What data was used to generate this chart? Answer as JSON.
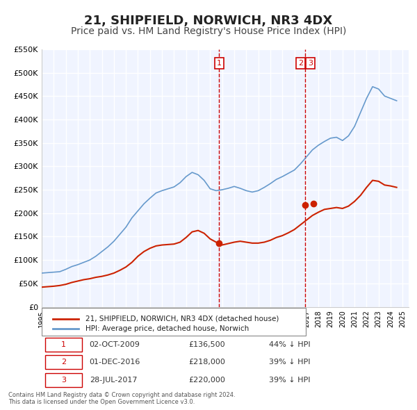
{
  "title": "21, SHIPFIELD, NORWICH, NR3 4DX",
  "subtitle": "Price paid vs. HM Land Registry's House Price Index (HPI)",
  "title_fontsize": 13,
  "subtitle_fontsize": 10,
  "background_color": "#ffffff",
  "plot_bg_color": "#f0f4ff",
  "grid_color": "#ffffff",
  "ylim": [
    0,
    550000
  ],
  "xlim_start": 1995.0,
  "xlim_end": 2025.5,
  "ytick_labels": [
    "£0",
    "£50K",
    "£100K",
    "£150K",
    "£200K",
    "£250K",
    "£300K",
    "£350K",
    "£400K",
    "£450K",
    "£500K",
    "£550K"
  ],
  "ytick_values": [
    0,
    50000,
    100000,
    150000,
    200000,
    250000,
    300000,
    350000,
    400000,
    450000,
    500000,
    550000
  ],
  "hpi_color": "#6699cc",
  "price_color": "#cc2200",
  "marker_color": "#cc2200",
  "dashed_line_color": "#cc0000",
  "transaction_labels": [
    "1",
    "2",
    "3"
  ],
  "transaction_dates": [
    2009.75,
    2016.92,
    2017.58
  ],
  "transaction_prices": [
    136500,
    218000,
    220000
  ],
  "transaction_date_strs": [
    "02-OCT-2009",
    "01-DEC-2016",
    "28-JUL-2017"
  ],
  "transaction_price_strs": [
    "£136,500",
    "£218,000",
    "£220,000"
  ],
  "transaction_hpi_strs": [
    "44% ↓ HPI",
    "39% ↓ HPI",
    "39% ↓ HPI"
  ],
  "vline1_x": 2009.75,
  "vline2_x": 2016.92,
  "legend_label1": "21, SHIPFIELD, NORWICH, NR3 4DX (detached house)",
  "legend_label2": "HPI: Average price, detached house, Norwich",
  "footer_text": "Contains HM Land Registry data © Crown copyright and database right 2024.\nThis data is licensed under the Open Government Licence v3.0.",
  "hpi_x": [
    1995.0,
    1995.5,
    1996.0,
    1996.5,
    1997.0,
    1997.5,
    1998.0,
    1998.5,
    1999.0,
    1999.5,
    2000.0,
    2000.5,
    2001.0,
    2001.5,
    2002.0,
    2002.5,
    2003.0,
    2003.5,
    2004.0,
    2004.5,
    2005.0,
    2005.5,
    2006.0,
    2006.5,
    2007.0,
    2007.5,
    2008.0,
    2008.5,
    2009.0,
    2009.5,
    2010.0,
    2010.5,
    2011.0,
    2011.5,
    2012.0,
    2012.5,
    2013.0,
    2013.5,
    2014.0,
    2014.5,
    2015.0,
    2015.5,
    2016.0,
    2016.5,
    2017.0,
    2017.5,
    2018.0,
    2018.5,
    2019.0,
    2019.5,
    2020.0,
    2020.5,
    2021.0,
    2021.5,
    2022.0,
    2022.5,
    2023.0,
    2023.5,
    2024.0,
    2024.5
  ],
  "hpi_y": [
    72000,
    73000,
    74000,
    75000,
    80000,
    86000,
    90000,
    95000,
    100000,
    108000,
    118000,
    128000,
    140000,
    155000,
    170000,
    190000,
    205000,
    220000,
    232000,
    243000,
    248000,
    252000,
    256000,
    265000,
    278000,
    287000,
    282000,
    270000,
    252000,
    248000,
    250000,
    253000,
    257000,
    253000,
    248000,
    245000,
    248000,
    255000,
    263000,
    272000,
    278000,
    285000,
    292000,
    305000,
    320000,
    335000,
    345000,
    353000,
    360000,
    362000,
    355000,
    365000,
    385000,
    415000,
    445000,
    470000,
    465000,
    450000,
    445000,
    440000
  ],
  "price_x": [
    1995.0,
    1995.5,
    1996.0,
    1996.5,
    1997.0,
    1997.5,
    1998.0,
    1998.5,
    1999.0,
    1999.5,
    2000.0,
    2000.5,
    2001.0,
    2001.5,
    2002.0,
    2002.5,
    2003.0,
    2003.5,
    2004.0,
    2004.5,
    2005.0,
    2005.5,
    2006.0,
    2006.5,
    2007.0,
    2007.5,
    2008.0,
    2008.5,
    2009.0,
    2009.5,
    2010.0,
    2010.5,
    2011.0,
    2011.5,
    2012.0,
    2012.5,
    2013.0,
    2013.5,
    2014.0,
    2014.5,
    2015.0,
    2015.5,
    2016.0,
    2016.5,
    2017.0,
    2017.5,
    2018.0,
    2018.5,
    2019.0,
    2019.5,
    2020.0,
    2020.5,
    2021.0,
    2021.5,
    2022.0,
    2022.5,
    2023.0,
    2023.5,
    2024.0,
    2024.5
  ],
  "price_y": [
    42000,
    43000,
    44000,
    45500,
    48000,
    52000,
    55000,
    58000,
    60000,
    63000,
    65000,
    68000,
    72000,
    78000,
    85000,
    95000,
    108000,
    118000,
    125000,
    130000,
    132000,
    133000,
    134000,
    138000,
    148000,
    160000,
    163000,
    157000,
    145000,
    138000,
    132000,
    135000,
    138000,
    140000,
    138000,
    136000,
    136000,
    138000,
    142000,
    148000,
    152000,
    158000,
    165000,
    175000,
    185000,
    195000,
    202000,
    208000,
    210000,
    212000,
    210000,
    215000,
    225000,
    238000,
    255000,
    270000,
    268000,
    260000,
    258000,
    255000
  ]
}
